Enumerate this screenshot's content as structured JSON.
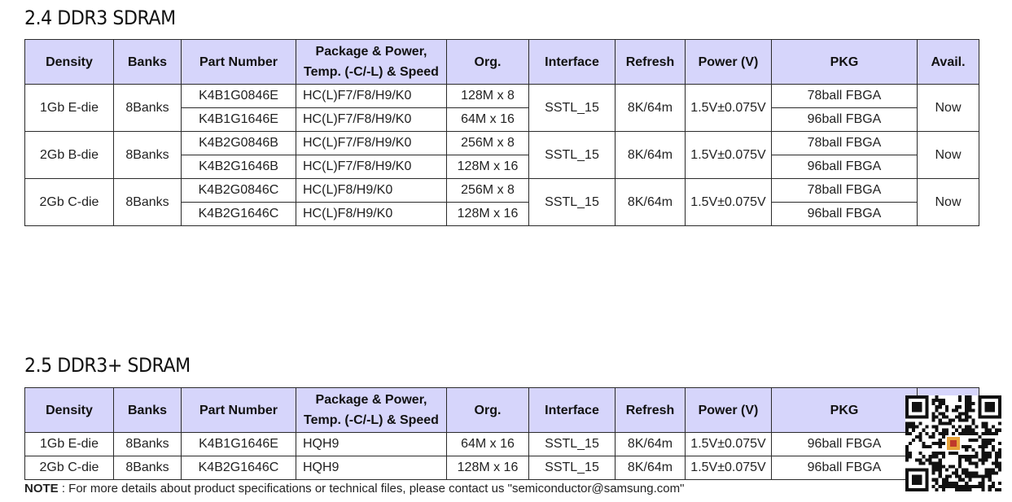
{
  "sections": [
    {
      "title": "2.4 DDR3 SDRAM",
      "headers": [
        "Density",
        "Banks",
        "Part Number",
        "Package & Power,",
        "Temp. (-C/-L) & Speed",
        "Org.",
        "Interface",
        "Refresh",
        "Power (V)",
        "PKG",
        "Avail."
      ],
      "groups": [
        {
          "density": "1Gb E-die",
          "banks": "8Banks",
          "interface": "SSTL_15",
          "refresh": "8K/64m",
          "power": "1.5V±0.075V",
          "avail": "Now",
          "rows": [
            {
              "part": "K4B1G0846E",
              "pkg_speed": "HC(L)F7/F8/H9/K0",
              "org": "128M x 8",
              "pkg": "78ball FBGA"
            },
            {
              "part": "K4B1G1646E",
              "pkg_speed": "HC(L)F7/F8/H9/K0",
              "org": "64M x 16",
              "pkg": "96ball FBGA"
            }
          ]
        },
        {
          "density": "2Gb B-die",
          "banks": "8Banks",
          "interface": "SSTL_15",
          "refresh": "8K/64m",
          "power": "1.5V±0.075V",
          "avail": "Now",
          "rows": [
            {
              "part": "K4B2G0846B",
              "pkg_speed": "HC(L)F7/F8/H9/K0",
              "org": "256M x 8",
              "pkg": "78ball FBGA"
            },
            {
              "part": "K4B2G1646B",
              "pkg_speed": "HC(L)F7/F8/H9/K0",
              "org": "128M x 16",
              "pkg": "96ball FBGA"
            }
          ]
        },
        {
          "density": "2Gb C-die",
          "banks": "8Banks",
          "interface": "SSTL_15",
          "refresh": "8K/64m",
          "power": "1.5V±0.075V",
          "avail": "Now",
          "rows": [
            {
              "part": "K4B2G0846C",
              "pkg_speed": "HC(L)F8/H9/K0",
              "org": "256M x 8",
              "pkg": "78ball FBGA"
            },
            {
              "part": "K4B2G1646C",
              "pkg_speed": "HC(L)F8/H9/K0",
              "org": "128M x 16",
              "pkg": "96ball FBGA"
            }
          ]
        }
      ]
    },
    {
      "title": "2.5 DDR3+ SDRAM",
      "headers": [
        "Density",
        "Banks",
        "Part Number",
        "Package & Power,",
        "Temp. (-C/-L) & Speed",
        "Org.",
        "Interface",
        "Refresh",
        "Power (V)",
        "PKG",
        ""
      ],
      "rows": [
        {
          "density": "1Gb E-die",
          "banks": "8Banks",
          "part": "K4B1G1646E",
          "pkg_speed": "HQH9",
          "org": "64M x 16",
          "interface": "SSTL_15",
          "refresh": "8K/64m",
          "power": "1.5V±0.075V",
          "pkg": "96ball FBGA",
          "avail": ""
        },
        {
          "density": "2Gb C-die",
          "banks": "8Banks",
          "part": "K4B2G1646C",
          "pkg_speed": "HQH9",
          "org": "128M x 16",
          "interface": "SSTL_15",
          "refresh": "8K/64m",
          "power": "1.5V±0.075V",
          "pkg": "96ball FBGA",
          "avail": ""
        }
      ]
    }
  ],
  "note": {
    "label": "NOTE",
    "text": " : For more details about product specifications or technical files, please contact us \"semiconductor@samsung.com\""
  },
  "qr_icon": "qr-code-icon"
}
